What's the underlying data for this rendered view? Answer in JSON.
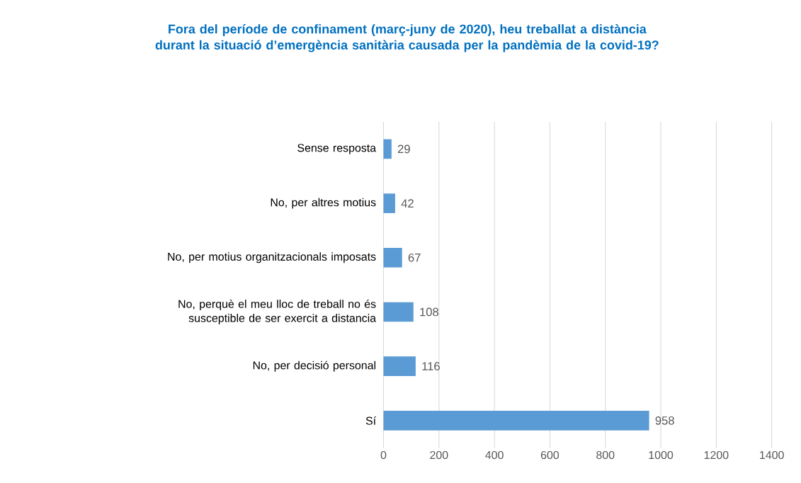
{
  "chart_data": {
    "type": "bar",
    "orientation": "horizontal",
    "title": "Fora del període de confinament (març-juny de 2020), heu treballat a distància durant la situació d’emergència sanitària causada per la pandèmia de la covid-19?",
    "categories": [
      "Sense resposta",
      "No, per altres motius",
      "No, per motius organitzacionals imposats",
      "No, perquè el meu lloc de treball no és susceptible de ser exercit a distancia",
      "No, per decisió personal",
      "Sí"
    ],
    "values": [
      29,
      42,
      67,
      108,
      116,
      958
    ],
    "color": "#5b9bd5",
    "xlim": [
      0,
      1400
    ],
    "xticks": [
      0,
      200,
      400,
      600,
      800,
      1000,
      1200,
      1400
    ],
    "grid": "x",
    "data_labels": true
  }
}
